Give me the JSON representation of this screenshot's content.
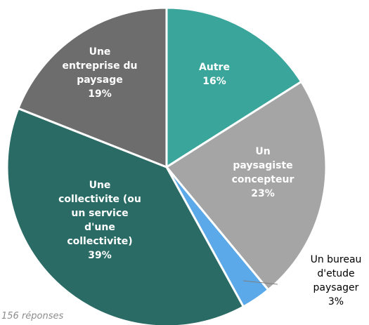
{
  "chart_data": {
    "type": "pie",
    "title": "",
    "note": "156 réponses",
    "start": "12 o'clock",
    "direction": "clockwise",
    "label_color": "#ffffff",
    "outside_label_color": "#000000",
    "slices": [
      {
        "label": "Autre",
        "value": 16,
        "percent_label": "16%",
        "color": "#3aa59b",
        "label_lines": [
          "Autre",
          "16%"
        ],
        "label_position": "inside"
      },
      {
        "label": "Un paysagiste concepteur",
        "value": 23,
        "percent_label": "23%",
        "color": "#a5a5a5",
        "label_lines": [
          "Un",
          "paysagiste",
          "concepteur",
          "23%"
        ],
        "label_position": "inside"
      },
      {
        "label": "Un bureau d'etude paysager",
        "value": 3,
        "percent_label": "3%",
        "color": "#5ba9e8",
        "label_lines": [
          "Un bureau",
          "d'etude",
          "paysager",
          "3%"
        ],
        "label_position": "outside"
      },
      {
        "label": "Une collectivite (ou un service d'une collectivite)",
        "value": 39,
        "percent_label": "39%",
        "color": "#2b6b65",
        "label_lines": [
          "Une",
          "collectivite (ou",
          "un service",
          "d'une",
          "collectivite)",
          "39%"
        ],
        "label_position": "inside"
      },
      {
        "label": "Une entreprise du paysage",
        "value": 19,
        "percent_label": "19%",
        "color": "#6d6d6d",
        "label_lines": [
          "Une",
          "entreprise du",
          "paysage",
          "19%"
        ],
        "label_position": "inside"
      }
    ]
  }
}
